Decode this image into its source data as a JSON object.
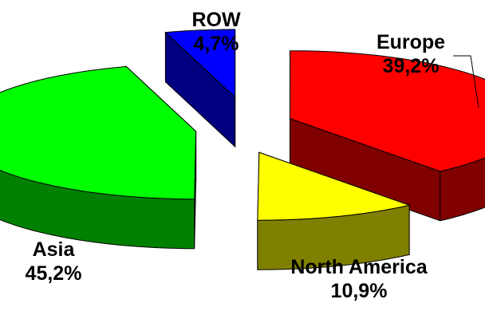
{
  "chart_data": {
    "type": "pie",
    "title": "",
    "slices": [
      {
        "label": "Europe",
        "value": 39.2,
        "display": "39,2%",
        "color": "#ff0000",
        "side_color": "#800000"
      },
      {
        "label": "North America",
        "value": 10.9,
        "display": "10,9%",
        "color": "#ffff00",
        "side_color": "#808000"
      },
      {
        "label": "Asia",
        "value": 45.2,
        "display": "45,2%",
        "color": "#00ff00",
        "side_color": "#008000"
      },
      {
        "label": "ROW",
        "value": 4.7,
        "display": "4,7%",
        "color": "#0000ff",
        "side_color": "#000080"
      }
    ],
    "style": "3D exploded pie",
    "legend": "none"
  }
}
